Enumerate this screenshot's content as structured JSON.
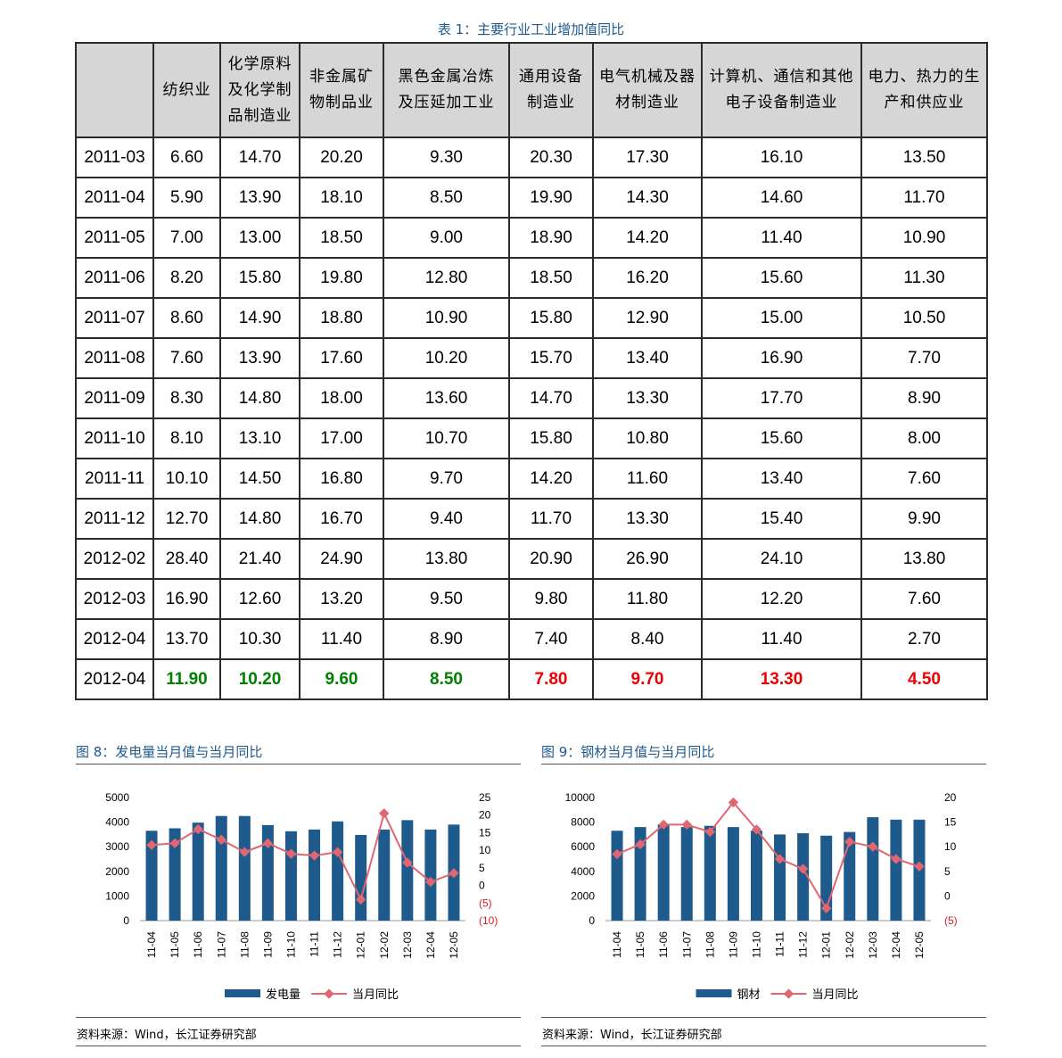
{
  "table": {
    "caption": "表 1：主要行业工业增加值同比",
    "headers": [
      "",
      "纺织业",
      "化学原料\n及化学制\n品制造业",
      "非金属矿\n物制品业",
      "黑色金属冶炼\n及压延加工业",
      "通用设备\n制造业",
      "电气机械及器\n材制造业",
      "计算机、通信和其他\n电子设备制造业",
      "电力、热力的生\n产和供应业"
    ],
    "rows": [
      [
        "2011-03",
        "6.60",
        "14.70",
        "20.20",
        "9.30",
        "20.30",
        "17.30",
        "16.10",
        "13.50"
      ],
      [
        "2011-04",
        "5.90",
        "13.90",
        "18.10",
        "8.50",
        "19.90",
        "14.30",
        "14.60",
        "11.70"
      ],
      [
        "2011-05",
        "7.00",
        "13.00",
        "18.50",
        "9.00",
        "18.90",
        "14.20",
        "11.40",
        "10.90"
      ],
      [
        "2011-06",
        "8.20",
        "15.80",
        "19.80",
        "12.80",
        "18.50",
        "16.20",
        "15.60",
        "11.30"
      ],
      [
        "2011-07",
        "8.60",
        "14.90",
        "18.80",
        "10.90",
        "15.80",
        "12.90",
        "15.00",
        "10.50"
      ],
      [
        "2011-08",
        "7.60",
        "13.90",
        "17.60",
        "10.20",
        "15.70",
        "13.40",
        "16.90",
        "7.70"
      ],
      [
        "2011-09",
        "8.30",
        "14.80",
        "18.00",
        "13.60",
        "14.70",
        "13.30",
        "17.70",
        "8.90"
      ],
      [
        "2011-10",
        "8.10",
        "13.10",
        "17.00",
        "10.70",
        "15.80",
        "10.80",
        "15.60",
        "8.00"
      ],
      [
        "2011-11",
        "10.10",
        "14.50",
        "16.80",
        "9.70",
        "14.20",
        "11.60",
        "13.40",
        "7.60"
      ],
      [
        "2011-12",
        "12.70",
        "14.80",
        "16.70",
        "9.40",
        "11.70",
        "13.30",
        "15.40",
        "9.90"
      ],
      [
        "2012-02",
        "28.40",
        "21.40",
        "24.90",
        "13.80",
        "20.90",
        "26.90",
        "24.10",
        "13.80"
      ],
      [
        "2012-03",
        "16.90",
        "12.60",
        "13.20",
        "9.50",
        "9.80",
        "11.80",
        "12.20",
        "7.60"
      ],
      [
        "2012-04",
        "13.70",
        "10.30",
        "11.40",
        "8.90",
        "7.40",
        "8.40",
        "11.40",
        "2.70"
      ],
      [
        "2012-04",
        "11.90",
        "10.20",
        "9.60",
        "8.50",
        "7.80",
        "9.70",
        "13.30",
        "4.50"
      ]
    ],
    "last_row_trend": [
      "",
      "up",
      "up",
      "up",
      "up",
      "down",
      "down",
      "down",
      "down"
    ]
  },
  "colors": {
    "bar": "#1e5b8c",
    "line": "#e06670",
    "caption": "#1f5a8c",
    "up": "#008000",
    "down": "#ee0000"
  },
  "figures": [
    {
      "title": "图 8：发电量当月值与当月同比",
      "source": "资料来源：Wind，长江证券研究部"
    },
    {
      "title": "图 9：钢材当月值与当月同比",
      "source": "资料来源：Wind，长江证券研究部"
    }
  ],
  "chart_data": [
    {
      "type": "bar",
      "categories": [
        "11-04",
        "11-05",
        "11-06",
        "11-07",
        "11-08",
        "11-09",
        "11-10",
        "11-11",
        "11-12",
        "12-01",
        "12-02",
        "12-03",
        "12-04",
        "12-05"
      ],
      "series": [
        {
          "name": "发电量",
          "type": "bar",
          "axis": "left",
          "values": [
            3650,
            3750,
            3980,
            4250,
            4250,
            3880,
            3630,
            3700,
            4030,
            3480,
            3700,
            4080,
            3700,
            3900
          ]
        },
        {
          "name": "当月同比",
          "type": "line",
          "axis": "right",
          "values": [
            11.5,
            12.0,
            16.0,
            13.0,
            9.5,
            12.0,
            9.0,
            8.5,
            9.5,
            -4.0,
            20.5,
            6.5,
            1.0,
            3.5
          ]
        }
      ],
      "y_left": {
        "min": 0,
        "max": 5000,
        "ticks": [
          "0",
          "1000",
          "2000",
          "3000",
          "4000",
          "5000"
        ]
      },
      "y_right": {
        "min": -10,
        "max": 25,
        "ticks": [
          {
            "label": "(10)",
            "value": -10,
            "neg": true
          },
          {
            "label": "(5)",
            "value": -5,
            "neg": true
          },
          {
            "label": "0",
            "value": 0
          },
          {
            "label": "5",
            "value": 5
          },
          {
            "label": "10",
            "value": 10
          },
          {
            "label": "15",
            "value": 15
          },
          {
            "label": "20",
            "value": 20
          },
          {
            "label": "25",
            "value": 25
          }
        ]
      },
      "legend": "bottom"
    },
    {
      "type": "bar",
      "categories": [
        "11-04",
        "11-05",
        "11-06",
        "11-07",
        "11-08",
        "11-09",
        "11-10",
        "11-11",
        "11-12",
        "12-01",
        "12-02",
        "12-03",
        "12-04",
        "12-05"
      ],
      "series": [
        {
          "name": "钢材",
          "type": "bar",
          "axis": "left",
          "values": [
            7300,
            7600,
            7800,
            7600,
            7700,
            7600,
            7300,
            7000,
            7100,
            6900,
            7200,
            8400,
            8200,
            8200
          ]
        },
        {
          "name": "当月同比",
          "type": "line",
          "axis": "right",
          "values": [
            8.5,
            10.5,
            14.5,
            14.5,
            13.0,
            19.0,
            13.5,
            7.5,
            5.5,
            -2.5,
            11.0,
            10.0,
            7.5,
            6.0
          ]
        }
      ],
      "y_left": {
        "min": 0,
        "max": 10000,
        "ticks": [
          "0",
          "2000",
          "4000",
          "6000",
          "8000",
          "10000"
        ]
      },
      "y_right": {
        "min": -5,
        "max": 20,
        "ticks": [
          {
            "label": "(5)",
            "value": -5,
            "neg": true
          },
          {
            "label": "0",
            "value": 0
          },
          {
            "label": "5",
            "value": 5
          },
          {
            "label": "10",
            "value": 10
          },
          {
            "label": "15",
            "value": 15
          },
          {
            "label": "20",
            "value": 20
          }
        ]
      },
      "legend": "bottom"
    }
  ]
}
